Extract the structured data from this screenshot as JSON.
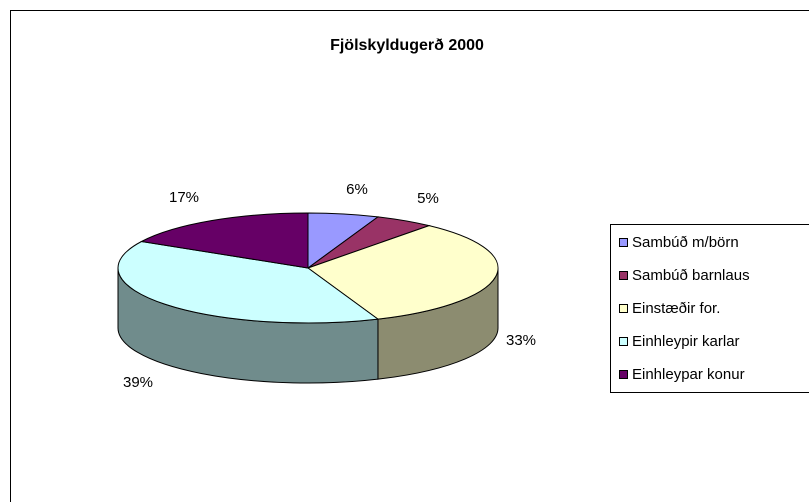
{
  "chart_data": {
    "type": "pie",
    "title": "Fjölskyldugerð 2000",
    "categories": [
      "Sambúð m/börn",
      "Sambúð barnlaus",
      "Einstæðir for.",
      "Einhleypir karlar",
      "Einhleypar konur"
    ],
    "values": [
      6,
      5,
      33,
      39,
      17
    ],
    "value_labels": [
      "6%",
      "5%",
      "33%",
      "39%",
      "17%"
    ],
    "colors": [
      "#9999ff",
      "#993366",
      "#ffffcc",
      "#ccffff",
      "#660066"
    ],
    "legend": "right"
  }
}
